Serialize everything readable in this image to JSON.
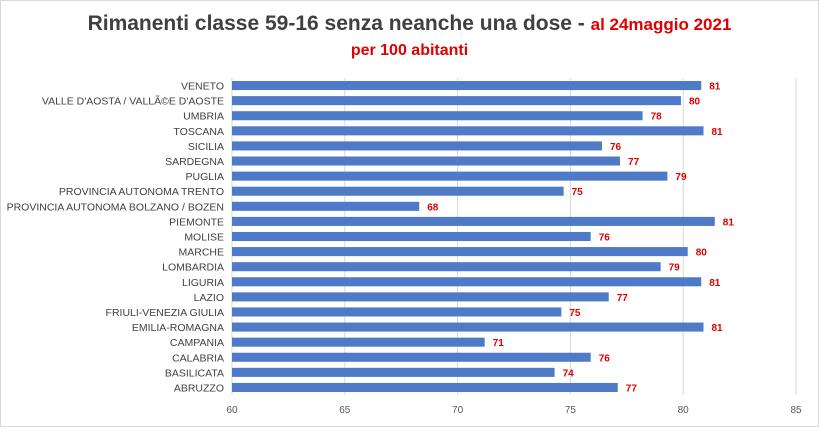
{
  "title": {
    "main": "Rimanenti classe 59-16  senza neanche una dose - ",
    "date": "al 24maggio 2021",
    "subtitle": "per 100 abitanti"
  },
  "colors": {
    "bar": "#4f7ac7",
    "value_label": "#e00000",
    "gridline": "#d9d9d9",
    "title": "#404040"
  },
  "chart_data": {
    "type": "bar",
    "orientation": "horizontal",
    "categories": [
      "VENETO",
      "VALLE D'AOSTA / VALLÃ©E D'AOSTE",
      "UMBRIA",
      "TOSCANA",
      "SICILIA",
      "SARDEGNA",
      "PUGLIA",
      "PROVINCIA AUTONOMA TRENTO",
      "PROVINCIA AUTONOMA BOLZANO / BOZEN",
      "PIEMONTE",
      "MOLISE",
      "MARCHE",
      "LOMBARDIA",
      "LIGURIA",
      "LAZIO",
      "FRIULI-VENEZIA GIULIA",
      "EMILIA-ROMAGNA",
      "CAMPANIA",
      "CALABRIA",
      "BASILICATA",
      "ABRUZZO"
    ],
    "values": [
      80.8,
      79.9,
      78.2,
      80.9,
      76.4,
      77.2,
      79.3,
      74.7,
      68.3,
      81.4,
      75.9,
      80.2,
      79.0,
      80.8,
      76.7,
      74.6,
      80.9,
      71.2,
      75.9,
      74.3,
      77.1
    ],
    "data_labels": [
      "81",
      "80",
      "78",
      "81",
      "76",
      "77",
      "79",
      "75",
      "68",
      "81",
      "76",
      "80",
      "79",
      "81",
      "77",
      "75",
      "81",
      "71",
      "76",
      "74",
      "77"
    ],
    "xlim": [
      60,
      85
    ],
    "xticks": [
      60,
      65,
      70,
      75,
      80,
      85
    ],
    "grid": "vertical"
  }
}
